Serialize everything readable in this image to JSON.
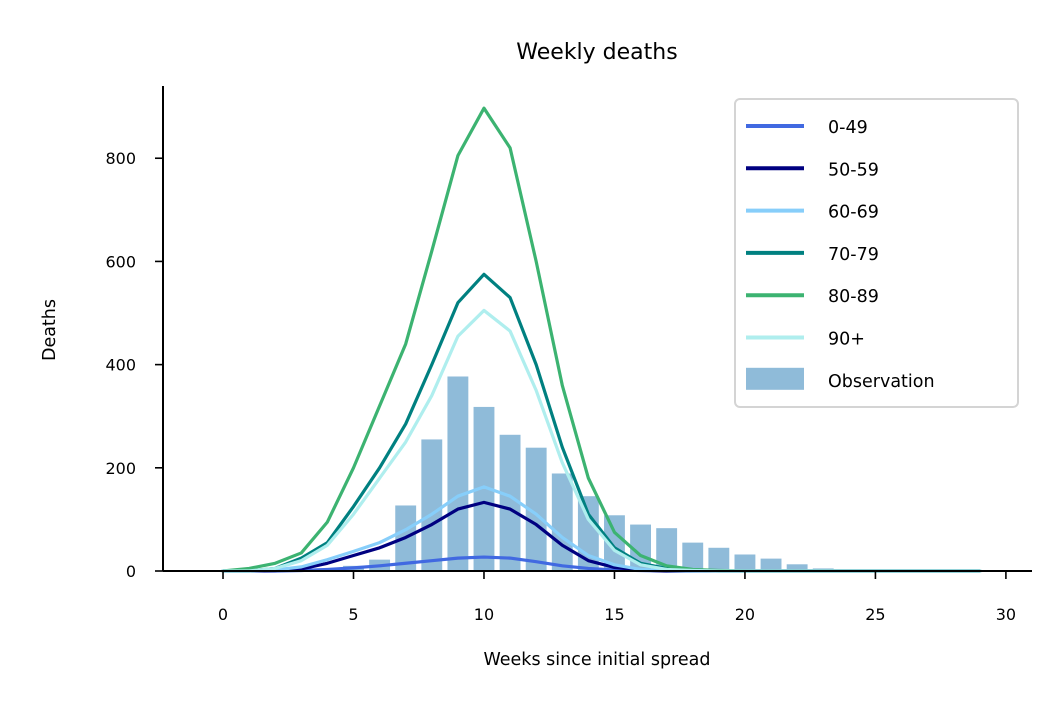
{
  "chart_data": {
    "type": "line",
    "title": "Weekly deaths",
    "xlabel": "Weeks since initial spread",
    "ylabel": "Deaths",
    "xlim": [
      -2.3,
      31
    ],
    "ylim": [
      0,
      940
    ],
    "xticks": [
      0,
      5,
      10,
      15,
      20,
      25,
      30
    ],
    "yticks": [
      0,
      200,
      400,
      600,
      800
    ],
    "grid": false,
    "legend_position": "top-right",
    "x": [
      0,
      1,
      2,
      3,
      4,
      5,
      6,
      7,
      8,
      9,
      10,
      11,
      12,
      13,
      14,
      15,
      16,
      17,
      18,
      19,
      20,
      21,
      22,
      23,
      24,
      25,
      26,
      27,
      28,
      29
    ],
    "series": [
      {
        "name": "0-49",
        "color": "#4169e1",
        "values": [
          0,
          0,
          0,
          1,
          3,
          6,
          10,
          15,
          20,
          25,
          27,
          25,
          18,
          10,
          5,
          2,
          1,
          0,
          0,
          0,
          0,
          0,
          0,
          0,
          0,
          0,
          0,
          0,
          0,
          0
        ]
      },
      {
        "name": "50-59",
        "color": "#000080",
        "values": [
          0,
          0,
          1,
          4,
          15,
          30,
          45,
          65,
          90,
          120,
          133,
          120,
          90,
          50,
          20,
          7,
          2,
          0,
          0,
          0,
          0,
          0,
          0,
          0,
          0,
          0,
          0,
          0,
          0,
          0
        ]
      },
      {
        "name": "60-69",
        "color": "#87cefa",
        "values": [
          0,
          0,
          2,
          8,
          22,
          38,
          55,
          80,
          110,
          145,
          163,
          145,
          110,
          65,
          30,
          12,
          3,
          1,
          0,
          0,
          0,
          0,
          0,
          0,
          0,
          0,
          0,
          0,
          0,
          0
        ]
      },
      {
        "name": "70-79",
        "color": "#008080",
        "values": [
          0,
          0,
          5,
          25,
          55,
          125,
          200,
          285,
          400,
          520,
          575,
          530,
          400,
          240,
          110,
          45,
          15,
          5,
          2,
          0,
          0,
          0,
          0,
          0,
          0,
          0,
          0,
          0,
          0,
          0
        ]
      },
      {
        "name": "80-89",
        "color": "#3cb371",
        "values": [
          0,
          5,
          15,
          35,
          95,
          200,
          320,
          440,
          620,
          805,
          897,
          820,
          600,
          360,
          180,
          75,
          30,
          10,
          3,
          1,
          0,
          0,
          0,
          0,
          0,
          0,
          0,
          0,
          0,
          0
        ]
      },
      {
        "name": "90+",
        "color": "#afeeee",
        "values": [
          0,
          0,
          5,
          20,
          50,
          110,
          180,
          250,
          340,
          455,
          505,
          465,
          350,
          210,
          100,
          40,
          12,
          3,
          1,
          0,
          0,
          0,
          0,
          0,
          0,
          0,
          0,
          0,
          0,
          0
        ]
      }
    ],
    "bars": {
      "name": "Observation",
      "color": "#8fbbd9",
      "x": [
        2,
        3,
        4,
        5,
        6,
        7,
        8,
        9,
        10,
        11,
        12,
        13,
        14,
        15,
        16,
        17,
        18,
        19,
        20,
        21,
        22,
        23,
        24,
        25,
        26,
        27,
        28,
        29
      ],
      "values": [
        1,
        2,
        5,
        10,
        22,
        127,
        255,
        377,
        318,
        264,
        239,
        189,
        145,
        108,
        90,
        83,
        55,
        45,
        32,
        24,
        13,
        5,
        3,
        2,
        1,
        1,
        1,
        1
      ]
    }
  }
}
